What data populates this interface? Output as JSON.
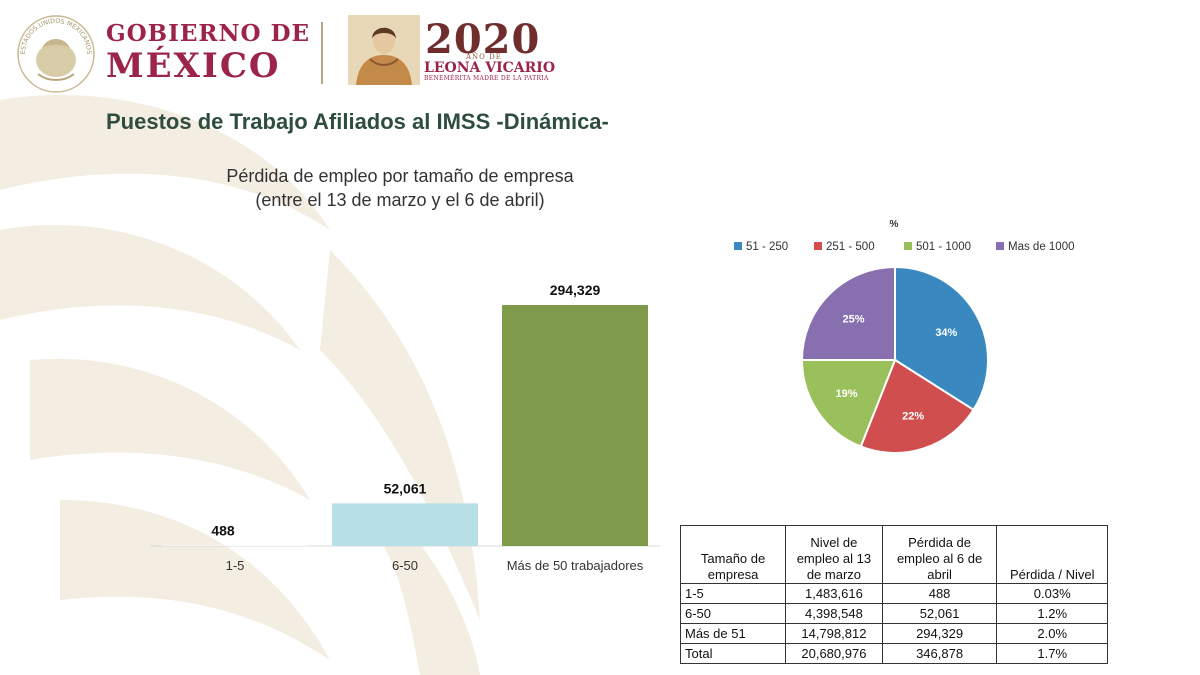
{
  "header": {
    "seal_ring_text": "ESTADOS UNIDOS MEXICANOS",
    "gov_line1": "GOBIERNO DE",
    "gov_line2": "MÉXICO",
    "year": "2020",
    "year_small": "AÑO DE",
    "leona": "LEONA VICARIO",
    "leona_sub": "BENEMÉRITA MADRE DE LA PATRIA"
  },
  "page": {
    "title": "Puestos de Trabajo Afiliados al IMSS -Dinámica-",
    "subtitle_line1": "Pérdida de empleo por tamaño de empresa",
    "subtitle_line2": "(entre el 13 de marzo y el 6 de abril)"
  },
  "chart_data": [
    {
      "type": "bar",
      "categories": [
        "1-5",
        "6-50",
        "Más de 50 trabajadores"
      ],
      "values": [
        488,
        52061,
        294329
      ],
      "value_labels": [
        "488",
        "52,061",
        "294,329"
      ],
      "colors": [
        "#ffffff",
        "#b7dfe8",
        "#7f9a4a"
      ],
      "ylim": [
        0,
        320000
      ],
      "grid": false
    },
    {
      "type": "pie",
      "title": "%",
      "labels": [
        "51 - 250",
        "251 - 500",
        "501 - 1000",
        "Mas de 1000"
      ],
      "values": [
        34,
        22,
        19,
        25
      ],
      "value_labels": [
        "34%",
        "22%",
        "19%",
        "25%"
      ],
      "colors": [
        "#3a88c0",
        "#d04e4e",
        "#99c05a",
        "#8870b0"
      ],
      "legend_position": "top"
    }
  ],
  "table": {
    "headers": [
      "Tamaño de empresa",
      "Nivel de empleo al 13 de marzo",
      "Pérdida de empleo al 6 de abril",
      "Pérdida / Nivel"
    ],
    "rows": [
      [
        "1-5",
        "1,483,616",
        "488",
        "0.03%"
      ],
      [
        "6-50",
        "4,398,548",
        "52,061",
        "1.2%"
      ],
      [
        "Más de 51",
        "14,798,812",
        "294,329",
        "2.0%"
      ],
      [
        "Total",
        "20,680,976",
        "346,878",
        "1.7%"
      ]
    ]
  },
  "colors": {
    "gov_red": "#9d2449",
    "title_green": "#2e4d3f",
    "pattern_beige": "#f3ede2"
  }
}
